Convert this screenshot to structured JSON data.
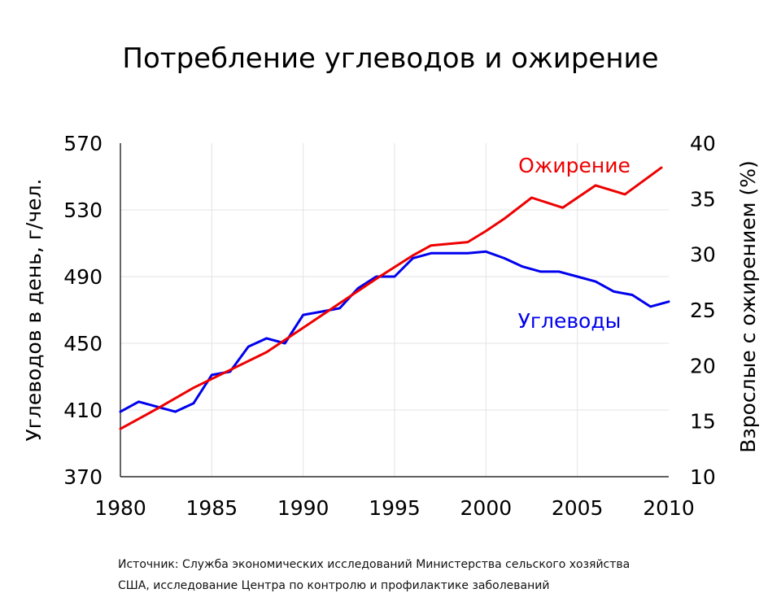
{
  "chart_data": {
    "type": "line",
    "title": "Потребление углеводов и ожирение",
    "ylabel": "Углеводов в день, г/чел.",
    "y2label": "Взрослые с ожирением (%)",
    "xlim": [
      1980,
      2010
    ],
    "ylim": [
      370,
      570
    ],
    "y2lim": [
      10,
      40
    ],
    "x_ticks": [
      "1980",
      "1985",
      "1990",
      "1995",
      "2000",
      "2005",
      "2010"
    ],
    "y_ticks": [
      "370",
      "410",
      "450",
      "490",
      "530",
      "570"
    ],
    "y2_ticks": [
      "10",
      "15",
      "20",
      "25",
      "30",
      "35",
      "40"
    ],
    "grid": true,
    "series": [
      {
        "name": "Углеводы",
        "axis": "left",
        "color": "#0000ee",
        "x": [
          1980,
          1981,
          1982,
          1983,
          1984,
          1985,
          1986,
          1987,
          1988,
          1989,
          1990,
          1991,
          1992,
          1993,
          1994,
          1995,
          1996,
          1997,
          1998,
          1999,
          2000,
          2001,
          2002,
          2003,
          2004,
          2005,
          2006,
          2007,
          2008,
          2009,
          2010
        ],
        "values": [
          409,
          415,
          412,
          409,
          414,
          431,
          433,
          448,
          453,
          450,
          467,
          469,
          471,
          483,
          490,
          490,
          501,
          504,
          504,
          504,
          505,
          501,
          496,
          493,
          493,
          490,
          487,
          481,
          479,
          472,
          475
        ]
      },
      {
        "name": "Ожирение",
        "axis": "right",
        "color": "#ee0000",
        "x": [
          1980,
          1982,
          1984,
          1986,
          1988,
          1990,
          1992,
          1994,
          1996,
          1997,
          1999,
          2000,
          2001,
          2002.5,
          2004.2,
          2006,
          2007.6,
          2009.6
        ],
        "values": [
          14.3,
          16.1,
          18.0,
          19.6,
          21.2,
          23.4,
          25.6,
          27.8,
          29.9,
          30.8,
          31.1,
          32.1,
          33.2,
          35.1,
          34.2,
          36.2,
          35.4,
          37.8
        ]
      }
    ],
    "annotations": [
      {
        "text": "Ожирение",
        "series": "Ожирение"
      },
      {
        "text": "Углеводы",
        "series": "Углеводы"
      }
    ]
  },
  "source": {
    "line1": "Источник: Служба экономических исследований Министерства сельского хозяйства",
    "line2": "США, исследование Центра по контролю и профилактике заболеваний"
  }
}
